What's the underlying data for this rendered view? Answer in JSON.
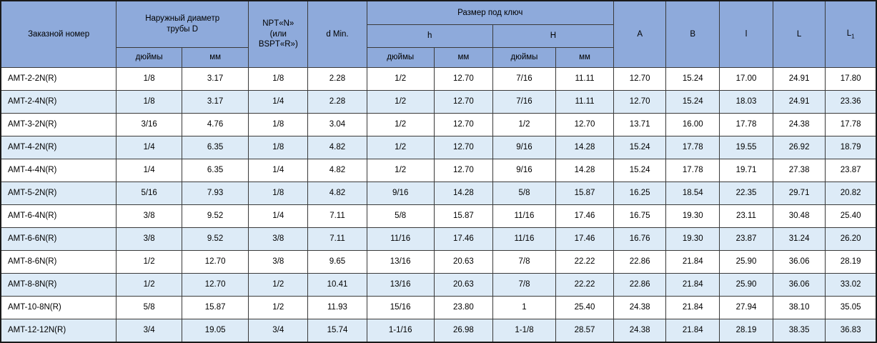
{
  "colors": {
    "header_bg": "#8EAADB",
    "alt_row_bg": "#DDEBF7",
    "border": "#3a3a3a"
  },
  "table": {
    "header": {
      "order_number": "Заказной номер",
      "outer_diameter": "Наружный диаметр трубы D",
      "npt": "NPT«N» (или BSPT«R»)",
      "d_min": "d Min.",
      "wrench_size": "Размер под ключ",
      "h_lower": "h",
      "h_upper": "H",
      "inches": "дюймы",
      "mm": "мм",
      "col_a": "A",
      "col_b": "B",
      "col_l_small": "l",
      "col_l_big": "L",
      "col_l1_base": "L",
      "col_l1_sub": "1"
    },
    "rows": [
      [
        "AMT-2-2N(R)",
        "1/8",
        "3.17",
        "1/8",
        "2.28",
        "1/2",
        "12.70",
        "7/16",
        "11.11",
        "12.70",
        "15.24",
        "17.00",
        "24.91",
        "17.80"
      ],
      [
        "AMT-2-4N(R)",
        "1/8",
        "3.17",
        "1/4",
        "2.28",
        "1/2",
        "12.70",
        "7/16",
        "11.11",
        "12.70",
        "15.24",
        "18.03",
        "24.91",
        "23.36"
      ],
      [
        "AMT-3-2N(R)",
        "3/16",
        "4.76",
        "1/8",
        "3.04",
        "1/2",
        "12.70",
        "1/2",
        "12.70",
        "13.71",
        "16.00",
        "17.78",
        "24.38",
        "17.78"
      ],
      [
        "AMT-4-2N(R)",
        "1/4",
        "6.35",
        "1/8",
        "4.82",
        "1/2",
        "12.70",
        "9/16",
        "14.28",
        "15.24",
        "17.78",
        "19.55",
        "26.92",
        "18.79"
      ],
      [
        "AMT-4-4N(R)",
        "1/4",
        "6.35",
        "1/4",
        "4.82",
        "1/2",
        "12.70",
        "9/16",
        "14.28",
        "15.24",
        "17.78",
        "19.71",
        "27.38",
        "23.87"
      ],
      [
        "AMT-5-2N(R)",
        "5/16",
        "7.93",
        "1/8",
        "4.82",
        "9/16",
        "14.28",
        "5/8",
        "15.87",
        "16.25",
        "18.54",
        "22.35",
        "29.71",
        "20.82"
      ],
      [
        "AMT-6-4N(R)",
        "3/8",
        "9.52",
        "1/4",
        "7.11",
        "5/8",
        "15.87",
        "11/16",
        "17.46",
        "16.75",
        "19.30",
        "23.11",
        "30.48",
        "25.40"
      ],
      [
        "AMT-6-6N(R)",
        "3/8",
        "9.52",
        "3/8",
        "7.11",
        "11/16",
        "17.46",
        "11/16",
        "17.46",
        "16.76",
        "19.30",
        "23.87",
        "31.24",
        "26.20"
      ],
      [
        "AMT-8-6N(R)",
        "1/2",
        "12.70",
        "3/8",
        "9.65",
        "13/16",
        "20.63",
        "7/8",
        "22.22",
        "22.86",
        "21.84",
        "25.90",
        "36.06",
        "28.19"
      ],
      [
        "AMT-8-8N(R)",
        "1/2",
        "12.70",
        "1/2",
        "10.41",
        "13/16",
        "20.63",
        "7/8",
        "22.22",
        "22.86",
        "21.84",
        "25.90",
        "36.06",
        "33.02"
      ],
      [
        "AMT-10-8N(R)",
        "5/8",
        "15.87",
        "1/2",
        "11.93",
        "15/16",
        "23.80",
        "1",
        "25.40",
        "24.38",
        "21.84",
        "27.94",
        "38.10",
        "35.05"
      ],
      [
        "AMT-12-12N(R)",
        "3/4",
        "19.05",
        "3/4",
        "15.74",
        "1-1/16",
        "26.98",
        "1-1/8",
        "28.57",
        "24.38",
        "21.84",
        "28.19",
        "38.35",
        "36.83"
      ]
    ]
  }
}
